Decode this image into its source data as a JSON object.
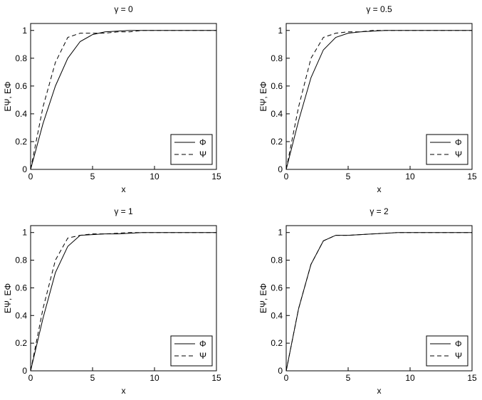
{
  "chart_data": [
    {
      "type": "line",
      "title": "γ = 0",
      "xlabel": "x",
      "ylabel": "EΨ, EΦ",
      "x": [
        0,
        1,
        2,
        3,
        4,
        5,
        6,
        7,
        8,
        9,
        10,
        11,
        12,
        13,
        14,
        15
      ],
      "series": [
        {
          "name": "Φ",
          "color": "#000000",
          "linestyle": "solid",
          "values": [
            0,
            0.33,
            0.6,
            0.8,
            0.92,
            0.97,
            0.99,
            0.995,
            1,
            1,
            1,
            1,
            1,
            1,
            1,
            1
          ]
        },
        {
          "name": "Ψ",
          "color": "#000000",
          "linestyle": "dashed",
          "values": [
            0,
            0.45,
            0.77,
            0.95,
            0.98,
            0.98,
            0.98,
            0.99,
            0.99,
            1,
            1,
            1,
            1,
            1,
            1,
            1
          ]
        }
      ],
      "xlim": [
        0,
        15
      ],
      "ylim": [
        0,
        1.05
      ],
      "xticks": [
        0,
        5,
        10,
        15
      ],
      "yticks": [
        0,
        0.2,
        0.4,
        0.6,
        0.8,
        1
      ],
      "grid": false,
      "legend": "lower right"
    },
    {
      "type": "line",
      "title": "γ = 0.5",
      "xlabel": "x",
      "ylabel": "EΨ, EΦ",
      "x": [
        0,
        1,
        2,
        3,
        4,
        5,
        6,
        7,
        8,
        9,
        10,
        11,
        12,
        13,
        14,
        15
      ],
      "series": [
        {
          "name": "Φ",
          "color": "#000000",
          "linestyle": "solid",
          "values": [
            0,
            0.35,
            0.66,
            0.86,
            0.95,
            0.98,
            0.99,
            0.995,
            1,
            1,
            1,
            1,
            1,
            1,
            1,
            1
          ]
        },
        {
          "name": "Ψ",
          "color": "#000000",
          "linestyle": "dashed",
          "values": [
            0,
            0.45,
            0.8,
            0.95,
            0.98,
            0.99,
            0.99,
            1,
            1,
            1,
            1,
            1,
            1,
            1,
            1,
            1
          ]
        }
      ],
      "xlim": [
        0,
        15
      ],
      "ylim": [
        0,
        1.05
      ],
      "xticks": [
        0,
        5,
        10,
        15
      ],
      "yticks": [
        0,
        0.2,
        0.4,
        0.6,
        0.8,
        1
      ],
      "grid": false,
      "legend": "lower right"
    },
    {
      "type": "line",
      "title": "γ = 1",
      "xlabel": "x",
      "ylabel": "EΨ, EΦ",
      "x": [
        0,
        1,
        2,
        3,
        4,
        5,
        6,
        7,
        8,
        9,
        10,
        11,
        12,
        13,
        14,
        15
      ],
      "series": [
        {
          "name": "Φ",
          "color": "#000000",
          "linestyle": "solid",
          "values": [
            0,
            0.38,
            0.71,
            0.9,
            0.98,
            0.985,
            0.99,
            0.99,
            0.995,
            1,
            1,
            1,
            1,
            1,
            1,
            1
          ]
        },
        {
          "name": "Ψ",
          "color": "#000000",
          "linestyle": "dashed",
          "values": [
            0,
            0.45,
            0.8,
            0.96,
            0.98,
            0.99,
            0.99,
            0.995,
            1,
            1,
            1,
            1,
            1,
            1,
            1,
            1
          ]
        }
      ],
      "xlim": [
        0,
        15
      ],
      "ylim": [
        0,
        1.05
      ],
      "xticks": [
        0,
        5,
        10,
        15
      ],
      "yticks": [
        0,
        0.2,
        0.4,
        0.6,
        0.8,
        1
      ],
      "grid": false,
      "legend": "lower right"
    },
    {
      "type": "line",
      "title": "γ = 2",
      "xlabel": "x",
      "ylabel": "EΨ, EΦ",
      "x": [
        0,
        1,
        2,
        3,
        4,
        5,
        6,
        7,
        8,
        9,
        10,
        11,
        12,
        13,
        14,
        15
      ],
      "series": [
        {
          "name": "Φ",
          "color": "#000000",
          "linestyle": "solid",
          "values": [
            0,
            0.45,
            0.77,
            0.94,
            0.98,
            0.98,
            0.985,
            0.99,
            0.995,
            1,
            1,
            1,
            1,
            1,
            1,
            1
          ]
        },
        {
          "name": "Ψ",
          "color": "#000000",
          "linestyle": "dashed",
          "values": [
            0,
            0.45,
            0.77,
            0.94,
            0.98,
            0.98,
            0.985,
            0.99,
            0.995,
            1,
            1,
            1,
            1,
            1,
            1,
            1
          ]
        }
      ],
      "xlim": [
        0,
        15
      ],
      "ylim": [
        0,
        1.05
      ],
      "xticks": [
        0,
        5,
        10,
        15
      ],
      "yticks": [
        0,
        0.2,
        0.4,
        0.6,
        0.8,
        1
      ],
      "grid": false,
      "legend": "lower right"
    }
  ]
}
